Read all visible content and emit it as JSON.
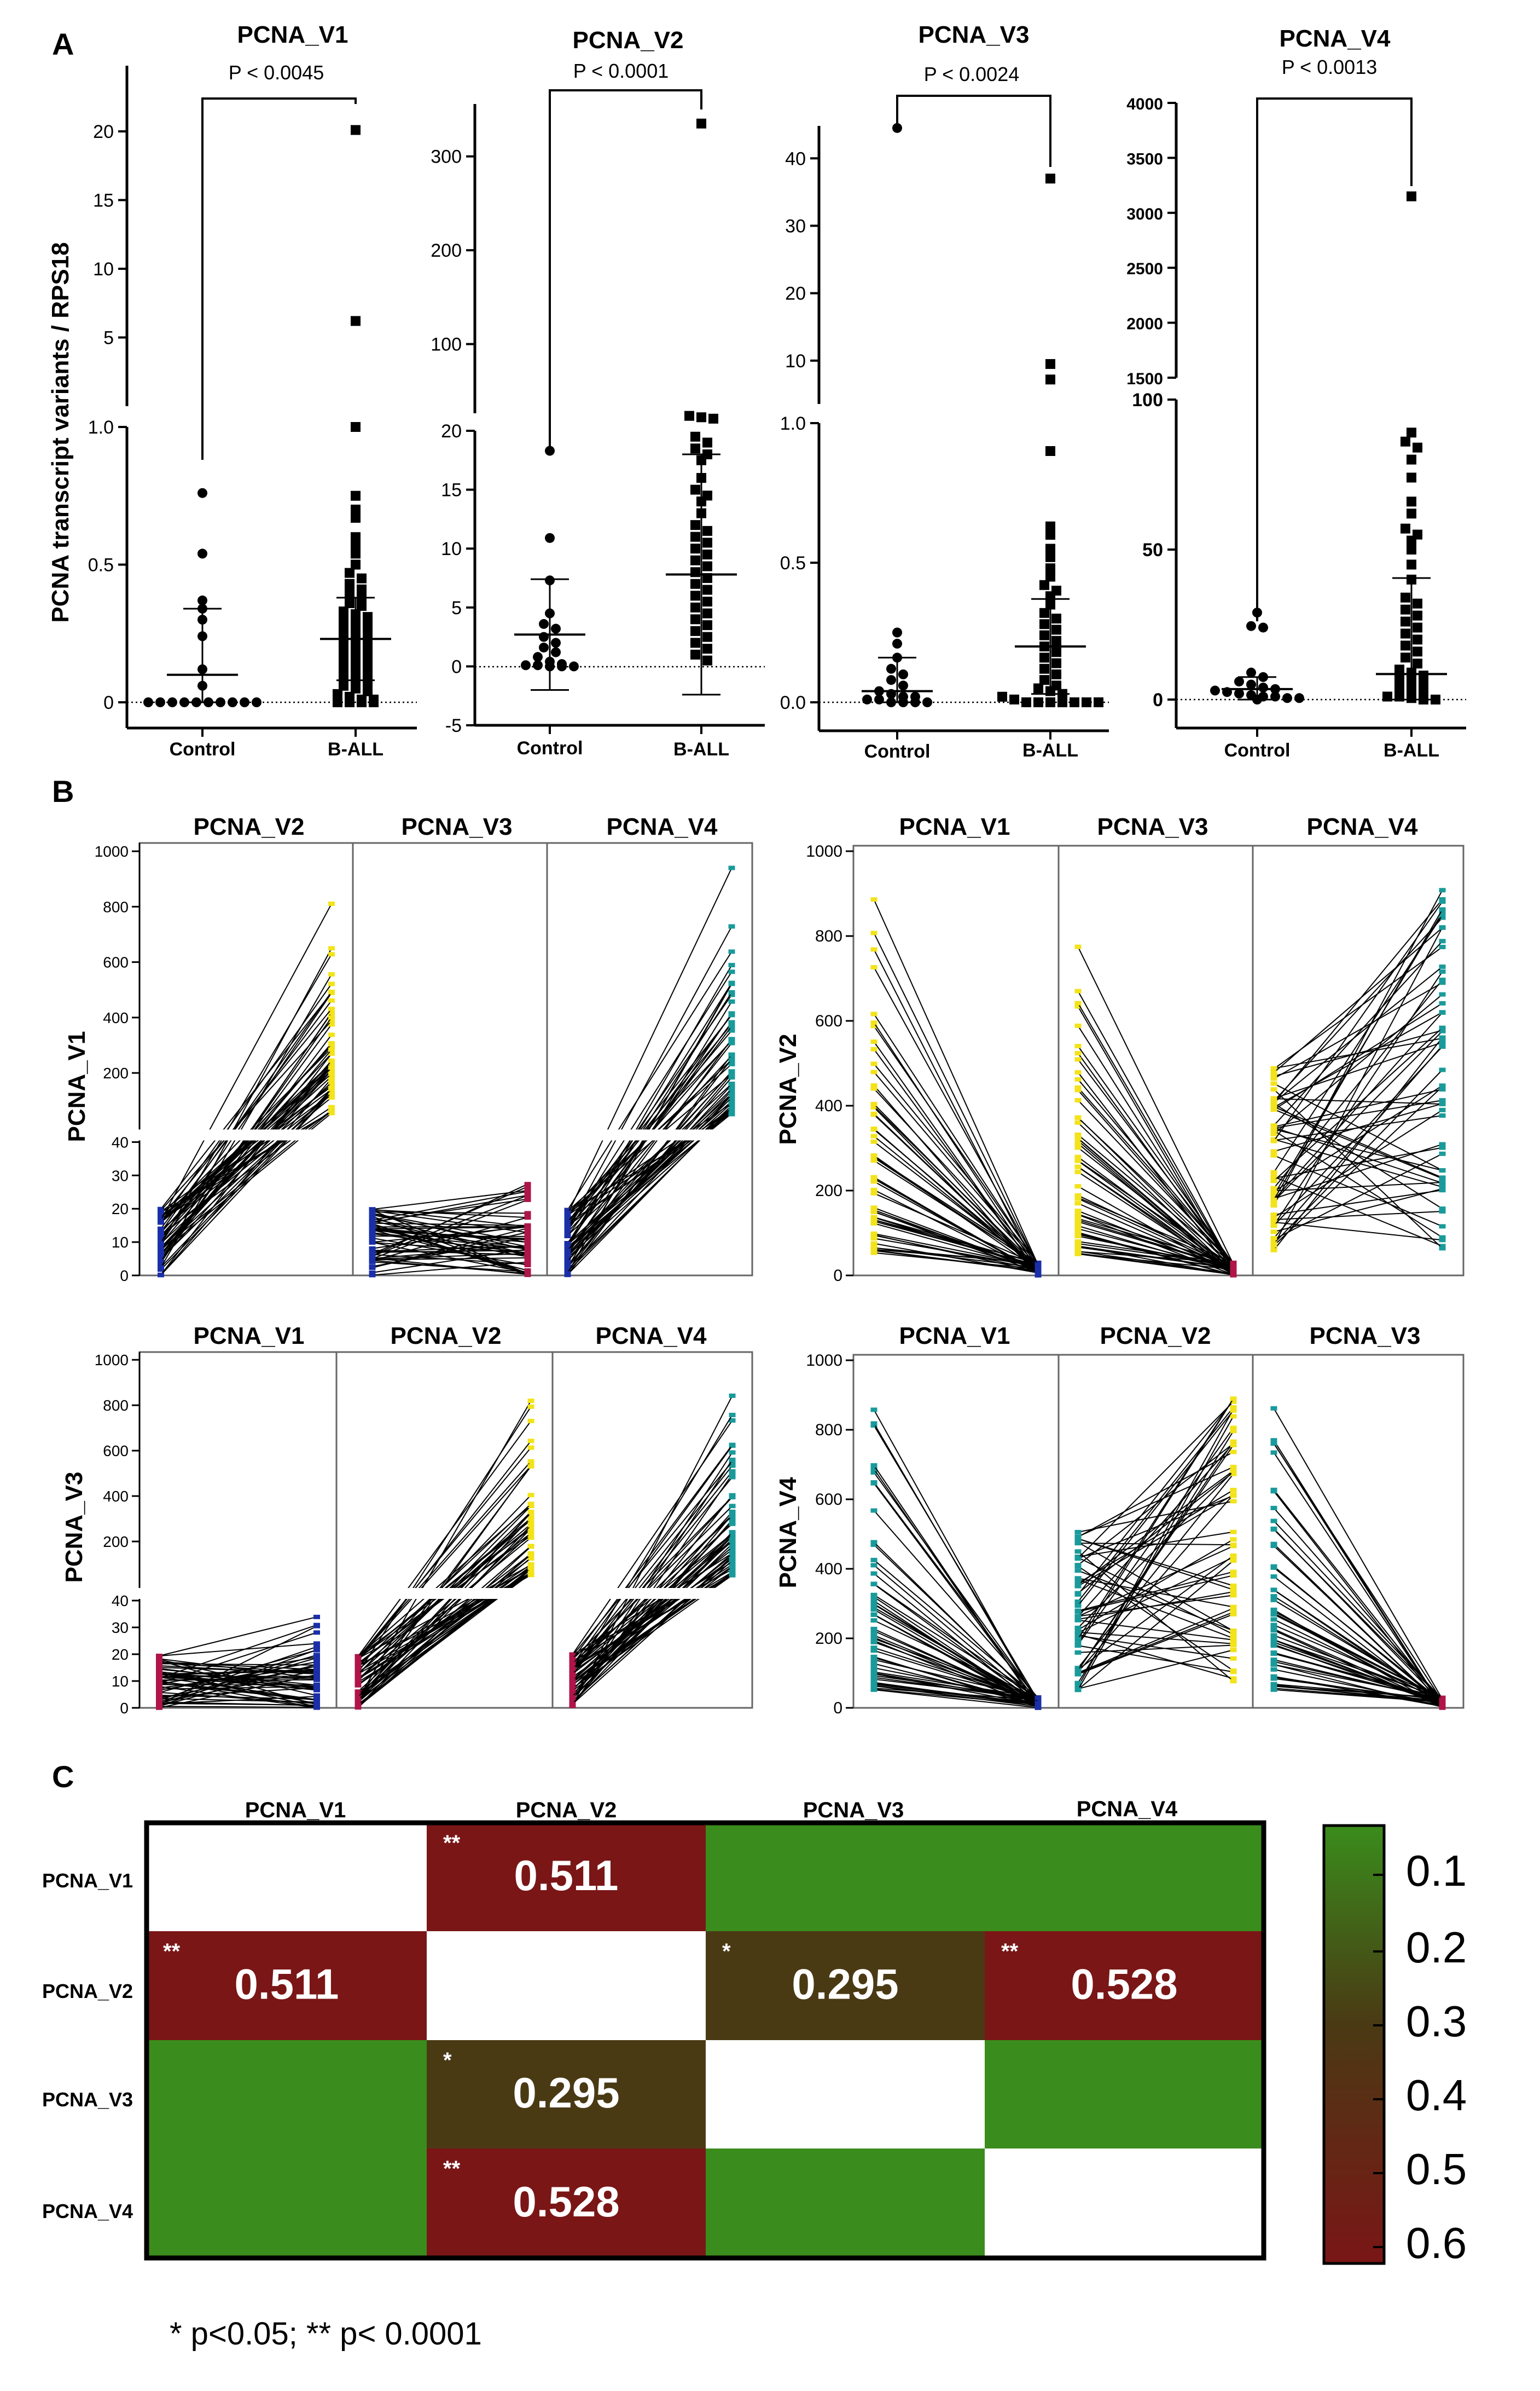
{
  "panel_labels": {
    "a": "A",
    "b": "B",
    "c": "C"
  },
  "y_axis_label": "PCNA transcript variants / RPS18",
  "footnote": "* p<0.05; ** p< 0.0001",
  "chart_data": [
    {
      "type": "scatter",
      "title": "PCNA_V1",
      "pvalue": "P < 0.0045",
      "categories": [
        "Control",
        "B-ALL"
      ],
      "axis_break": true,
      "upper_ticks": [
        "20",
        "15",
        "10",
        "5"
      ],
      "lower_ticks": [
        "1.0",
        "0.5",
        "0"
      ],
      "series": [
        {
          "name": "Control",
          "values": [
            0.76,
            0.54,
            0.37,
            0.34,
            0.3,
            0.24,
            0.12,
            0.06,
            0,
            0,
            0,
            0,
            0,
            0,
            0,
            0,
            0,
            0
          ],
          "mean": 0.1,
          "sd": 0.24
        },
        {
          "name": "B-ALL",
          "values": [
            20.1,
            6.2,
            1.0,
            0.75,
            0.7,
            0.67,
            0.6,
            0.57,
            0.54,
            0.5,
            0.47,
            0.45,
            0.43,
            0.41,
            0.4,
            0.38,
            0.36,
            0.35,
            0.33,
            0.32,
            0.31,
            0.3,
            0.29,
            0.28,
            0.27,
            0.26,
            0.25,
            0.24,
            0.23,
            0.22,
            0.21,
            0.2,
            0.19,
            0.18,
            0.17,
            0.16,
            0.15,
            0.14,
            0.13,
            0.12,
            0.11,
            0.1,
            0.09,
            0.08,
            0.07,
            0.06,
            0.05,
            0.04,
            0.03,
            0.02,
            0.01,
            0.01,
            0.0,
            0.0,
            0.0,
            0.0
          ],
          "mean": 0.23,
          "sd": 0.15
        }
      ]
    },
    {
      "type": "scatter",
      "title": "PCNA_V2",
      "pvalue": "P < 0.0001",
      "categories": [
        "Control",
        "B-ALL"
      ],
      "axis_break": true,
      "upper_ticks": [
        "300",
        "200",
        "100"
      ],
      "lower_ticks": [
        "20",
        "15",
        "10",
        "5",
        "0",
        "-5"
      ],
      "series": [
        {
          "name": "Control",
          "values": [
            18.3,
            10.9,
            7.3,
            4.5,
            3.6,
            3.2,
            2.5,
            2.0,
            1.6,
            1.2,
            0.8,
            0.4,
            0.2,
            0.1,
            0.1,
            0.0,
            0.0,
            0.0
          ],
          "mean": 2.7,
          "sd": 4.7
        },
        {
          "name": "B-ALL",
          "values": [
            335,
            23.5,
            22,
            20.5,
            19.5,
            19,
            18.5,
            18,
            17.5,
            16,
            15,
            14.5,
            14,
            13,
            12,
            11.5,
            11,
            10.5,
            10,
            9.5,
            9,
            8.5,
            8,
            7.5,
            7,
            6.5,
            6,
            5.5,
            5,
            4.5,
            4,
            3.5,
            3,
            2.5,
            2,
            1.5,
            1.0,
            0.5
          ],
          "mean": 7.8,
          "sd": 10.2
        }
      ]
    },
    {
      "type": "scatter",
      "title": "PCNA_V3",
      "pvalue": "P < 0.0024",
      "categories": [
        "Control",
        "B-ALL"
      ],
      "axis_break": true,
      "upper_ticks": [
        "40",
        "30",
        "20",
        "10"
      ],
      "lower_ticks": [
        "1.0",
        "0.5",
        "0.0"
      ],
      "series": [
        {
          "name": "Control",
          "values": [
            44.5,
            0.25,
            0.21,
            0.16,
            0.12,
            0.1,
            0.08,
            0.06,
            0.04,
            0.03,
            0.02,
            0.02,
            0.01,
            0.01,
            0.0,
            0.0,
            0.0,
            0.0
          ],
          "mean": 0.04,
          "sd": 0.12
        },
        {
          "name": "B-ALL",
          "values": [
            37,
            9.5,
            7.2,
            0.9,
            0.63,
            0.6,
            0.55,
            0.52,
            0.48,
            0.45,
            0.42,
            0.4,
            0.38,
            0.35,
            0.32,
            0.3,
            0.28,
            0.26,
            0.24,
            0.22,
            0.2,
            0.18,
            0.16,
            0.14,
            0.12,
            0.1,
            0.08,
            0.06,
            0.05,
            0.04,
            0.03,
            0.02,
            0.01,
            0.0,
            0.0,
            0.0,
            0.0,
            0.0,
            0.0,
            0.0
          ],
          "mean": 0.2,
          "sd": 0.17
        }
      ]
    },
    {
      "type": "scatter",
      "title": "PCNA_V4",
      "pvalue": "P < 0.0013",
      "categories": [
        "Control",
        "B-ALL"
      ],
      "axis_break": true,
      "upper_ticks": [
        "4000",
        "3500",
        "3000",
        "2500",
        "2000",
        "1500"
      ],
      "lower_ticks": [
        "100",
        "50",
        "0"
      ],
      "series": [
        {
          "name": "Control",
          "values": [
            29,
            24.5,
            24,
            9,
            7.5,
            6,
            5,
            4,
            3.5,
            3,
            2.5,
            2,
            1.5,
            1,
            1,
            0.5,
            0.5,
            0
          ],
          "mean": 3.5,
          "sd": 4.0
        },
        {
          "name": "B-ALL",
          "values": [
            3150,
            89,
            86,
            84,
            80,
            74,
            66,
            62,
            57,
            55,
            53,
            50,
            45,
            40,
            34,
            32,
            30,
            28,
            26,
            24,
            22,
            20,
            18,
            16,
            14,
            12,
            10,
            9,
            8,
            7,
            6,
            5,
            4,
            3,
            2,
            1,
            1,
            0.5,
            0,
            0
          ],
          "mean": 8.5,
          "sd": 32.0
        }
      ]
    },
    {
      "type": "line",
      "ylabel": "PCNA_V1",
      "columns": [
        "PCNA_V2",
        "PCNA_V3",
        "PCNA_V4"
      ],
      "lower_ticks": [
        "40",
        "30",
        "20",
        "10",
        "0"
      ],
      "upper_ticks": [
        "1000",
        "800",
        "600",
        "400",
        "200"
      ]
    },
    {
      "type": "line",
      "ylabel": "PCNA_V2",
      "columns": [
        "PCNA_V1",
        "PCNA_V3",
        "PCNA_V4"
      ],
      "ticks": [
        "1000",
        "800",
        "600",
        "400",
        "200",
        "0"
      ]
    },
    {
      "type": "line",
      "ylabel": "PCNA_V3",
      "columns": [
        "PCNA_V1",
        "PCNA_V2",
        "PCNA_V4"
      ],
      "lower_ticks": [
        "40",
        "30",
        "20",
        "10",
        "0"
      ],
      "upper_ticks": [
        "1000",
        "800",
        "600",
        "400",
        "200"
      ]
    },
    {
      "type": "line",
      "ylabel": "PCNA_V4",
      "columns": [
        "PCNA_V1",
        "PCNA_V2",
        "PCNA_V3"
      ],
      "ticks": [
        "1000",
        "800",
        "600",
        "400",
        "200",
        "0"
      ]
    },
    {
      "type": "heatmap",
      "columns": [
        "PCNA_V1",
        "PCNA_V2",
        "PCNA_V3",
        "PCNA_V4"
      ],
      "rows": [
        "PCNA_V1",
        "PCNA_V2",
        "PCNA_V3",
        "PCNA_V4"
      ],
      "cells": [
        [
          null,
          {
            "value": 0.511,
            "label": "0.511",
            "star": "**"
          },
          {
            "value": 0.1
          },
          {
            "value": 0.1
          }
        ],
        [
          {
            "value": 0.511,
            "label": "0.511",
            "star": "**"
          },
          null,
          {
            "value": 0.295,
            "label": "0.295",
            "star": "*"
          },
          {
            "value": 0.528,
            "label": "0.528",
            "star": "**"
          }
        ],
        [
          {
            "value": 0.1
          },
          {
            "value": 0.295,
            "label": "0.295",
            "star": "*"
          },
          null,
          {
            "value": 0.1
          }
        ],
        [
          {
            "value": 0.1
          },
          {
            "value": 0.528,
            "label": "0.528",
            "star": "**"
          },
          {
            "value": 0.1
          },
          null
        ]
      ],
      "colorbar_ticks": [
        "0.1",
        "0.2",
        "0.3",
        "0.4",
        "0.5",
        "0.6"
      ],
      "colors": {
        "low": "#3a8c1c",
        "mid": "#4a3a14",
        "high": "#7a1616"
      }
    }
  ]
}
